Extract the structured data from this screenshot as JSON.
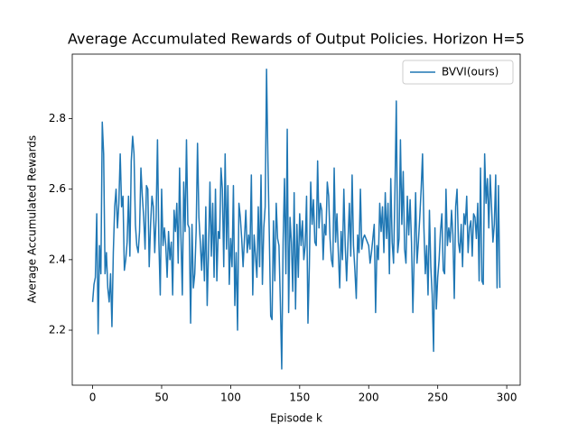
{
  "chart_data": {
    "type": "line",
    "title": "Average Accumulated Rewards of Output Policies. Horizon H=5",
    "x_label": "Episode k",
    "y_label": "Average Accumulated Rewards",
    "x": [
      0,
      1,
      2,
      3,
      4,
      5,
      6,
      7,
      8,
      9,
      10,
      11,
      12,
      13,
      14,
      15,
      16,
      17,
      18,
      19,
      20,
      21,
      22,
      23,
      24,
      25,
      26,
      27,
      28,
      29,
      30,
      31,
      32,
      33,
      34,
      35,
      36,
      37,
      38,
      39,
      40,
      41,
      42,
      43,
      44,
      45,
      46,
      47,
      48,
      49,
      50,
      51,
      52,
      53,
      54,
      55,
      56,
      57,
      58,
      59,
      60,
      61,
      62,
      63,
      64,
      65,
      66,
      67,
      68,
      69,
      70,
      71,
      72,
      73,
      74,
      75,
      76,
      77,
      78,
      79,
      80,
      81,
      82,
      83,
      84,
      85,
      86,
      87,
      88,
      89,
      90,
      91,
      92,
      93,
      94,
      95,
      96,
      97,
      98,
      99,
      100,
      101,
      102,
      103,
      104,
      105,
      106,
      107,
      108,
      109,
      110,
      111,
      112,
      113,
      114,
      115,
      116,
      117,
      118,
      119,
      120,
      121,
      122,
      123,
      124,
      125,
      126,
      127,
      128,
      129,
      130,
      131,
      132,
      133,
      134,
      135,
      136,
      137,
      138,
      139,
      140,
      141,
      142,
      143,
      144,
      145,
      146,
      147,
      148,
      149,
      150,
      151,
      152,
      153,
      154,
      155,
      156,
      157,
      158,
      159,
      160,
      161,
      162,
      163,
      164,
      165,
      166,
      167,
      168,
      169,
      170,
      171,
      172,
      173,
      174,
      175,
      176,
      177,
      178,
      179,
      180,
      181,
      182,
      183,
      184,
      185,
      186,
      187,
      188,
      189,
      190,
      191,
      192,
      193,
      194,
      195,
      196,
      197,
      198,
      199,
      200,
      201,
      202,
      203,
      204,
      205,
      206,
      207,
      208,
      209,
      210,
      211,
      212,
      213,
      214,
      215,
      216,
      217,
      218,
      219,
      220,
      221,
      222,
      223,
      224,
      225,
      226,
      227,
      228,
      229,
      230,
      231,
      232,
      233,
      234,
      235,
      236,
      237,
      238,
      239,
      240,
      241,
      242,
      243,
      244,
      245,
      246,
      247,
      248,
      249,
      250,
      251,
      252,
      253,
      254,
      255,
      256,
      257,
      258,
      259,
      260,
      261,
      262,
      263,
      264,
      265,
      266,
      267,
      268,
      269,
      270,
      271,
      272,
      273,
      274,
      275,
      276,
      277,
      278,
      279,
      280,
      281,
      282,
      283,
      284,
      285,
      286,
      287,
      288,
      289,
      290,
      291,
      292,
      293,
      294,
      295
    ],
    "series": [
      {
        "name": "BVVI(ours)",
        "color": "#1f77b4",
        "values": [
          2.28,
          2.33,
          2.35,
          2.53,
          2.19,
          2.44,
          2.36,
          2.79,
          2.7,
          2.36,
          2.42,
          2.32,
          2.28,
          2.36,
          2.21,
          2.42,
          2.55,
          2.6,
          2.49,
          2.56,
          2.7,
          2.55,
          2.58,
          2.37,
          2.4,
          2.45,
          2.58,
          2.41,
          2.68,
          2.75,
          2.7,
          2.5,
          2.44,
          2.42,
          2.48,
          2.66,
          2.58,
          2.52,
          2.43,
          2.61,
          2.6,
          2.38,
          2.5,
          2.58,
          2.55,
          2.42,
          2.52,
          2.74,
          2.45,
          2.3,
          2.6,
          2.44,
          2.49,
          2.44,
          2.35,
          2.48,
          2.4,
          2.45,
          2.3,
          2.54,
          2.48,
          2.56,
          2.39,
          2.66,
          2.46,
          2.3,
          2.62,
          2.48,
          2.74,
          2.5,
          2.49,
          2.22,
          2.5,
          2.32,
          2.36,
          2.48,
          2.73,
          2.52,
          2.45,
          2.37,
          2.47,
          2.34,
          2.55,
          2.27,
          2.43,
          2.62,
          2.41,
          2.56,
          2.35,
          2.6,
          2.34,
          2.48,
          2.46,
          2.66,
          2.6,
          2.38,
          2.7,
          2.43,
          2.61,
          2.33,
          2.46,
          2.38,
          2.61,
          2.27,
          2.42,
          2.2,
          2.56,
          2.52,
          2.46,
          2.38,
          2.46,
          2.54,
          2.42,
          2.47,
          2.43,
          2.64,
          2.3,
          2.47,
          2.41,
          2.35,
          2.55,
          2.38,
          2.64,
          2.33,
          2.49,
          2.55,
          2.94,
          2.68,
          2.47,
          2.24,
          2.23,
          2.51,
          2.34,
          2.56,
          2.46,
          2.44,
          2.28,
          2.09,
          2.45,
          2.63,
          2.36,
          2.77,
          2.25,
          2.52,
          2.45,
          2.31,
          2.59,
          2.26,
          2.5,
          2.35,
          2.53,
          2.44,
          2.51,
          2.4,
          2.44,
          2.58,
          2.22,
          2.38,
          2.62,
          2.5,
          2.57,
          2.45,
          2.44,
          2.68,
          2.49,
          2.56,
          2.54,
          2.4,
          2.5,
          2.47,
          2.62,
          2.58,
          2.46,
          2.4,
          2.38,
          2.66,
          2.45,
          2.53,
          2.42,
          2.32,
          2.48,
          2.4,
          2.6,
          2.44,
          2.34,
          2.45,
          2.56,
          2.41,
          2.64,
          2.44,
          2.37,
          2.29,
          2.47,
          2.42,
          2.6,
          2.43,
          2.46,
          2.47,
          2.46,
          2.45,
          2.44,
          2.39,
          2.42,
          2.46,
          2.5,
          2.25,
          2.44,
          2.4,
          2.56,
          2.48,
          2.55,
          2.42,
          2.59,
          2.46,
          2.56,
          2.36,
          2.63,
          2.45,
          2.39,
          2.59,
          2.85,
          2.42,
          2.46,
          2.74,
          2.5,
          2.65,
          2.43,
          2.39,
          2.58,
          2.47,
          2.57,
          2.45,
          2.25,
          2.42,
          2.59,
          2.39,
          2.45,
          2.52,
          2.6,
          2.7,
          2.49,
          2.36,
          2.44,
          2.3,
          2.54,
          2.38,
          2.3,
          2.14,
          2.49,
          2.26,
          2.35,
          2.4,
          2.48,
          2.53,
          2.37,
          2.36,
          2.6,
          2.44,
          2.49,
          2.45,
          2.54,
          2.47,
          2.29,
          2.55,
          2.6,
          2.45,
          2.42,
          2.5,
          2.38,
          2.53,
          2.5,
          2.58,
          2.42,
          2.49,
          2.51,
          2.41,
          2.53,
          2.52,
          2.46,
          2.56,
          2.34,
          2.66,
          2.34,
          2.33,
          2.7,
          2.56,
          2.63,
          2.49,
          2.64,
          2.55,
          2.45,
          2.5,
          2.64,
          2.32,
          2.61,
          2.32
        ]
      }
    ],
    "xlim": [
      -14.75,
      309.75
    ],
    "xticks": [
      0,
      50,
      100,
      150,
      200,
      250,
      300
    ],
    "ylim": [
      2.044,
      2.983
    ],
    "yticks": [
      2.2,
      2.4,
      2.6,
      2.8
    ],
    "grid": false,
    "legend": "upper right"
  }
}
